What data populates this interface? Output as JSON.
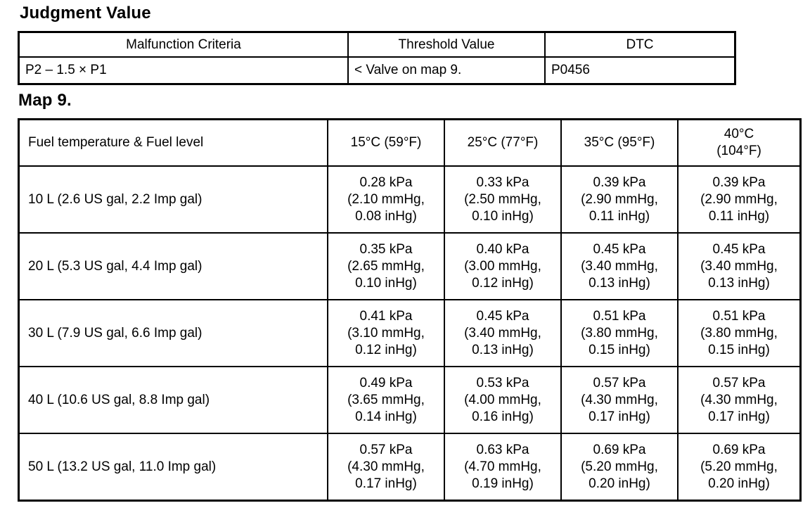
{
  "headings": {
    "judgment_value": "Judgment Value",
    "map9": "Map 9."
  },
  "judgment_table": {
    "headers": [
      "Malfunction Criteria",
      "Threshold Value",
      "DTC"
    ],
    "row": {
      "criteria": "P2 – 1.5 × P1",
      "threshold": "< Valve on map 9.",
      "dtc": "P0456"
    }
  },
  "map9_table": {
    "corner_header": "Fuel temperature & Fuel level",
    "temp_headers": [
      [
        "15°C (59°F)"
      ],
      [
        "25°C (77°F)"
      ],
      [
        "35°C (95°F)"
      ],
      [
        "40°C",
        "(104°F)"
      ]
    ],
    "rows": [
      {
        "level": "10 L (2.6 US gal, 2.2 Imp gal)",
        "values": [
          [
            "0.28 kPa",
            "(2.10 mmHg,",
            "0.08 inHg)"
          ],
          [
            "0.33 kPa",
            "(2.50 mmHg,",
            "0.10 inHg)"
          ],
          [
            "0.39 kPa",
            "(2.90 mmHg,",
            "0.11 inHg)"
          ],
          [
            "0.39 kPa",
            "(2.90 mmHg,",
            "0.11 inHg)"
          ]
        ]
      },
      {
        "level": "20 L (5.3 US gal, 4.4 Imp gal)",
        "values": [
          [
            "0.35 kPa",
            "(2.65 mmHg,",
            "0.10 inHg)"
          ],
          [
            "0.40 kPa",
            "(3.00 mmHg,",
            "0.12 inHg)"
          ],
          [
            "0.45 kPa",
            "(3.40 mmHg,",
            "0.13 inHg)"
          ],
          [
            "0.45 kPa",
            "(3.40 mmHg,",
            "0.13 inHg)"
          ]
        ]
      },
      {
        "level": "30 L (7.9 US gal, 6.6 Imp gal)",
        "values": [
          [
            "0.41 kPa",
            "(3.10 mmHg,",
            "0.12 inHg)"
          ],
          [
            "0.45 kPa",
            "(3.40 mmHg,",
            "0.13 inHg)"
          ],
          [
            "0.51 kPa",
            "(3.80 mmHg,",
            "0.15 inHg)"
          ],
          [
            "0.51 kPa",
            "(3.80 mmHg,",
            "0.15 inHg)"
          ]
        ]
      },
      {
        "level": "40 L (10.6 US gal, 8.8 Imp gal)",
        "values": [
          [
            "0.49 kPa",
            "(3.65 mmHg,",
            "0.14 inHg)"
          ],
          [
            "0.53 kPa",
            "(4.00 mmHg,",
            "0.16 inHg)"
          ],
          [
            "0.57 kPa",
            "(4.30 mmHg,",
            "0.17 inHg)"
          ],
          [
            "0.57 kPa",
            "(4.30 mmHg,",
            "0.17 inHg)"
          ]
        ]
      },
      {
        "level": "50 L (13.2 US gal, 11.0 Imp gal)",
        "values": [
          [
            "0.57 kPa",
            "(4.30 mmHg,",
            "0.17 inHg)"
          ],
          [
            "0.63 kPa",
            "(4.70 mmHg,",
            "0.19 inHg)"
          ],
          [
            "0.69 kPa",
            "(5.20 mmHg,",
            "0.20 inHg)"
          ],
          [
            "0.69 kPa",
            "(5.20 mmHg,",
            "0.20 inHg)"
          ]
        ]
      }
    ]
  }
}
